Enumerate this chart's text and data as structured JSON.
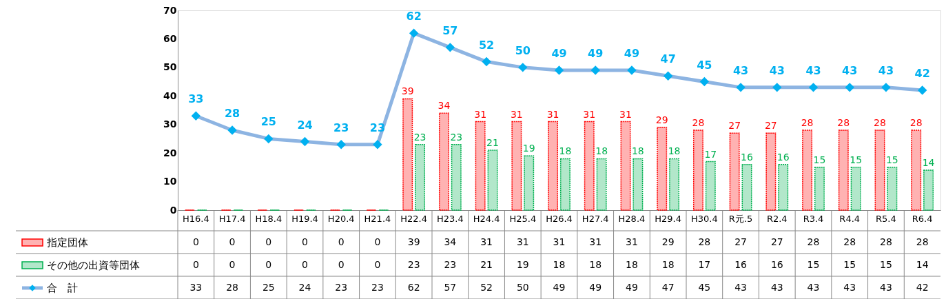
{
  "chart_data": {
    "type": "bar",
    "categories": [
      "H16.4",
      "H17.4",
      "H18.4",
      "H19.4",
      "H20.4",
      "H21.4",
      "H22.4",
      "H23.4",
      "H24.4",
      "H25.4",
      "H26.4",
      "H27.4",
      "H28.4",
      "H29.4",
      "H30.4",
      "R元.5",
      "R2.4",
      "R3.4",
      "R4.4",
      "R5.4",
      "R6.4"
    ],
    "series": [
      {
        "name": "指定団体",
        "color": "#ff0000",
        "values": [
          0,
          0,
          0,
          0,
          0,
          0,
          39,
          34,
          31,
          31,
          31,
          31,
          31,
          29,
          28,
          27,
          27,
          28,
          28,
          28,
          28
        ],
        "value_labels": [
          null,
          null,
          null,
          null,
          null,
          null,
          "39",
          "34",
          "31",
          "31",
          "31",
          "31",
          "31",
          "29",
          "28",
          "27",
          "27",
          "28",
          "28",
          "28",
          "28"
        ]
      },
      {
        "name": "その他の出資等団体",
        "color": "#00b050",
        "values": [
          0,
          0,
          0,
          0,
          0,
          0,
          23,
          23,
          21,
          19,
          18,
          18,
          18,
          18,
          17,
          16,
          16,
          15,
          15,
          15,
          14
        ],
        "value_labels": [
          null,
          null,
          null,
          null,
          null,
          null,
          "23",
          "23",
          "21",
          "19",
          "18",
          "18",
          "18",
          "18",
          "17",
          "16",
          "16",
          "15",
          "15",
          "15",
          "14"
        ]
      },
      {
        "name": "合　計",
        "type": "line",
        "color": "#8db4e2",
        "values": [
          33,
          28,
          25,
          24,
          23,
          23,
          62,
          57,
          52,
          50,
          49,
          49,
          49,
          47,
          45,
          43,
          43,
          43,
          43,
          43,
          42
        ],
        "value_labels": [
          "33",
          "28",
          "25",
          "24",
          "23",
          "23",
          "62",
          "57",
          "52",
          "50",
          "49",
          "49",
          "49",
          "47",
          "45",
          "43",
          "43",
          "43",
          "43",
          "43",
          "42"
        ]
      }
    ],
    "annotations": [
      "0",
      "0",
      "0",
      "0",
      "0",
      "0",
      "39",
      "34",
      "31",
      "31",
      "31",
      "31",
      "31",
      "29",
      "28",
      "27",
      "27",
      "28",
      "28",
      "28",
      "28",
      "0",
      "0",
      "0",
      "0",
      "0",
      "0",
      "23",
      "23",
      "21",
      "19",
      "18",
      "18",
      "18",
      "18",
      "17",
      "16",
      "16",
      "15",
      "15",
      "15",
      "14",
      "33",
      "28",
      "25",
      "24",
      "23",
      "23",
      "62",
      "57",
      "52",
      "50",
      "49",
      "49",
      "49",
      "47",
      "45",
      "43",
      "43",
      "43",
      "43",
      "43",
      "42"
    ],
    "ylim": [
      0,
      70
    ],
    "yticks": [
      0,
      10,
      20,
      30,
      40,
      50,
      60,
      70
    ],
    "marker": "diamond",
    "legend": "bottom left"
  }
}
